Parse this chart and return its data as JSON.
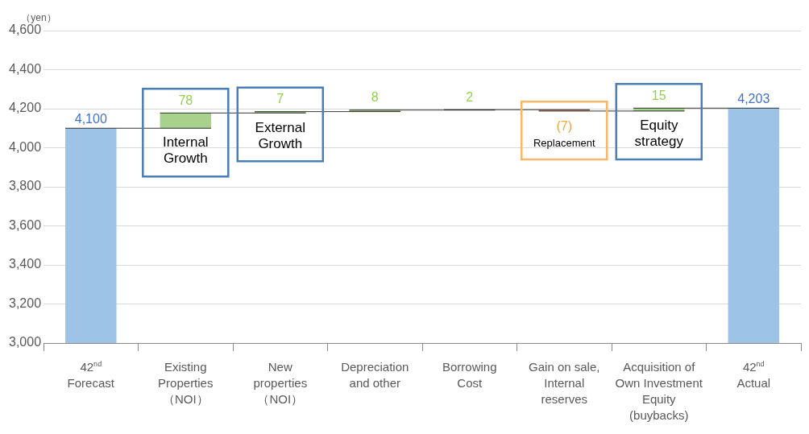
{
  "chart_data": {
    "type": "bar",
    "ylabel": "（yen）",
    "categories": [
      "42$^{nd}$\nForecast",
      "Existing\nProperties\n（NOI）",
      "New\nproperties\n（NOI）",
      "Depreciation\nand other",
      "Borrowing\nCost",
      "Gain on sale,\nInternal\nreserves",
      "Acquisition of\nOwn Investment\nEquity\n(buybacks)",
      "42$^{nd}$\nActual"
    ],
    "values": [
      4100,
      78,
      7,
      8,
      2,
      -7,
      15,
      4203
    ],
    "base": [
      0,
      4100,
      4178,
      4185,
      4193,
      4195,
      4188,
      0
    ],
    "colors": [
      "#9dc3e6",
      "#a9d18e",
      "#a9d18e",
      "#a9d18e",
      "#a9d18e",
      "#f4b183",
      "#a9d18e",
      "#9dc3e6"
    ],
    "value_labels": [
      "4,100",
      "78",
      "7",
      "8",
      "2",
      "(7)",
      "15",
      "4,203"
    ],
    "ylim": [
      3000,
      4600
    ],
    "yticks": [
      {
        "value": 3000,
        "label": "3,000"
      },
      {
        "value": 3200,
        "label": "3,200"
      },
      {
        "value": 3400,
        "label": "3,400"
      },
      {
        "value": 3600,
        "label": "3,600"
      },
      {
        "value": 3800,
        "label": "3,800"
      },
      {
        "value": 4000,
        "label": "4,000"
      },
      {
        "value": 4200,
        "label": "4,200"
      },
      {
        "value": 4400,
        "label": "4,400"
      },
      {
        "value": 4600,
        "label": "4,600"
      }
    ],
    "grid": "y",
    "legend": false,
    "annotations": [
      {
        "text": "Internal\nGrowth",
        "x": "Existing\nProperties\n（NOI）",
        "y": 4178
      },
      {
        "text": "External\nGrowth",
        "x": "New\nproperties\n（NOI）",
        "y": 4185
      },
      {
        "text": "Replacement",
        "x": "Gain on sale,\nInternal\nreserves",
        "y": 4188
      },
      {
        "text": "Equity\nstrategy",
        "x": "Acquisition of\nOwn Investment\nEquity\n(buybacks)",
        "y": 4203
      }
    ]
  }
}
